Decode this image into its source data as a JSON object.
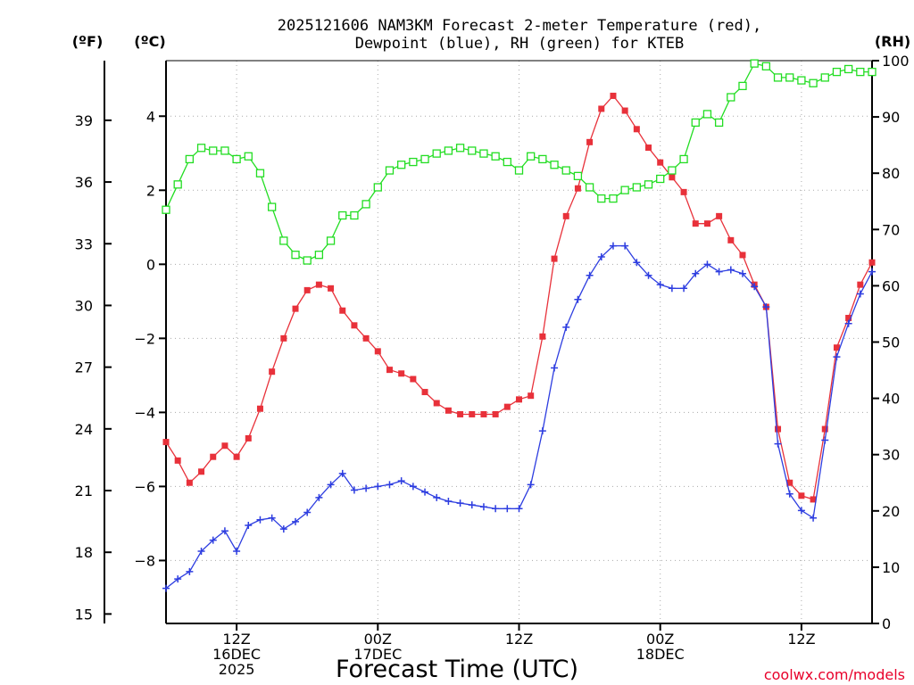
{
  "chart_data": {
    "type": "line",
    "title_line1": "2025121606 NAM3KM Forecast 2-meter Temperature (red),",
    "title_line2": "Dewpoint (blue), RH (green) for KTEB",
    "xlabel": "Forecast Time (UTC)",
    "credit": "coolwx.com/models",
    "x_hour_range": [
      0,
      60
    ],
    "units": {
      "fahrenheit": "(ºF)",
      "celsius": "(ºC)",
      "rh": "(RH)"
    },
    "celsius_axis": {
      "range": [
        -9.7,
        5.5
      ],
      "ticks": [
        -8,
        -6,
        -4,
        -2,
        0,
        2,
        4
      ]
    },
    "fahrenheit_axis": {
      "ticks": [
        15,
        18,
        21,
        24,
        27,
        30,
        33,
        36,
        39
      ]
    },
    "rh_axis": {
      "range": [
        0,
        100
      ],
      "ticks": [
        0,
        10,
        20,
        30,
        40,
        50,
        60,
        70,
        80,
        90,
        100
      ]
    },
    "x_ticks": [
      {
        "hour": 6,
        "lines": [
          "12Z",
          "16DEC",
          "2025"
        ]
      },
      {
        "hour": 18,
        "lines": [
          "00Z",
          "17DEC"
        ]
      },
      {
        "hour": 30,
        "lines": [
          "12Z"
        ]
      },
      {
        "hour": 42,
        "lines": [
          "00Z",
          "18DEC"
        ]
      },
      {
        "hour": 54,
        "lines": [
          "12Z"
        ]
      }
    ],
    "series": [
      {
        "name": "2-meter Temperature",
        "color": "#e8313a",
        "marker": "filled-square",
        "axis": "celsius",
        "values": [
          -4.8,
          -5.3,
          -5.9,
          -5.6,
          -5.2,
          -4.9,
          -5.2,
          -4.7,
          -3.9,
          -2.9,
          -2.0,
          -1.2,
          -0.7,
          -0.55,
          -0.65,
          -1.25,
          -1.65,
          -2.0,
          -2.35,
          -2.85,
          -2.95,
          -3.1,
          -3.45,
          -3.75,
          -3.95,
          -4.05,
          -4.05,
          -4.05,
          -4.05,
          -3.85,
          -3.65,
          -3.55,
          -1.95,
          0.15,
          1.3,
          2.05,
          3.3,
          4.2,
          4.55,
          4.15,
          3.65,
          3.15,
          2.75,
          2.35,
          1.95,
          1.1,
          1.1,
          1.3,
          0.65,
          0.25,
          -0.55,
          -1.15,
          -4.45,
          -5.9,
          -6.25,
          -6.35,
          -4.45,
          -2.25,
          -1.45,
          -0.55,
          0.05
        ]
      },
      {
        "name": "Dewpoint",
        "color": "#2d3de0",
        "marker": "plus",
        "axis": "celsius",
        "values": [
          -8.75,
          -8.5,
          -8.3,
          -7.75,
          -7.45,
          -7.2,
          -7.75,
          -7.05,
          -6.9,
          -6.85,
          -7.15,
          -6.95,
          -6.7,
          -6.3,
          -5.95,
          -5.65,
          -6.1,
          -6.05,
          -6.0,
          -5.95,
          -5.85,
          -6.0,
          -6.15,
          -6.3,
          -6.4,
          -6.45,
          -6.5,
          -6.55,
          -6.6,
          -6.6,
          -6.6,
          -5.95,
          -4.5,
          -2.8,
          -1.7,
          -0.95,
          -0.3,
          0.2,
          0.5,
          0.5,
          0.05,
          -0.3,
          -0.55,
          -0.65,
          -0.65,
          -0.25,
          0.0,
          -0.2,
          -0.15,
          -0.25,
          -0.6,
          -1.15,
          -4.85,
          -6.2,
          -6.65,
          -6.85,
          -4.75,
          -2.5,
          -1.6,
          -0.8,
          -0.2
        ]
      },
      {
        "name": "RH",
        "color": "#22dd22",
        "marker": "open-square",
        "axis": "rh",
        "values": [
          73.5,
          78,
          82.5,
          84.5,
          84,
          84,
          82.5,
          83,
          80,
          74,
          68,
          65.5,
          64.5,
          65.5,
          68,
          72.5,
          72.5,
          74.5,
          77.5,
          80.5,
          81.5,
          82,
          82.5,
          83.5,
          84,
          84.5,
          84,
          83.5,
          83,
          82,
          80.5,
          83,
          82.5,
          81.5,
          80.5,
          79.5,
          77.5,
          75.5,
          75.5,
          77,
          77.5,
          78,
          79,
          80.5,
          82.5,
          89,
          90.5,
          89,
          93.5,
          95.5,
          99.5,
          99,
          97,
          97,
          96.5,
          96,
          97,
          98,
          98.5,
          98,
          98
        ]
      }
    ]
  }
}
